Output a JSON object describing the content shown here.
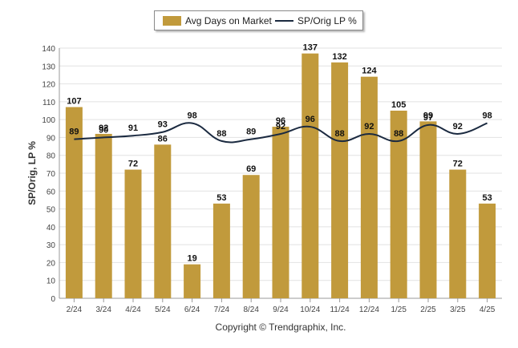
{
  "legend": {
    "bar_label": "Avg Days on Market",
    "line_label": "SP/Orig LP %"
  },
  "footer": {
    "copyright": "Copyright © Trendgraphix, Inc."
  },
  "chart_data": {
    "type": "bar",
    "categories": [
      "2/24",
      "3/24",
      "4/24",
      "5/24",
      "6/24",
      "7/24",
      "8/24",
      "9/24",
      "10/24",
      "11/24",
      "12/24",
      "1/25",
      "2/25",
      "3/25",
      "4/25"
    ],
    "series": [
      {
        "name": "Avg Days on Market",
        "type": "bar",
        "color": "#c19a3c",
        "values": [
          107,
          92,
          72,
          86,
          19,
          53,
          69,
          96,
          137,
          132,
          124,
          105,
          99,
          72,
          53
        ]
      },
      {
        "name": "SP/Orig LP %",
        "type": "line",
        "color": "#1b2a40",
        "values": [
          89,
          90,
          91,
          93,
          98,
          88,
          89,
          92,
          96,
          88,
          92,
          88,
          97,
          92,
          98
        ]
      }
    ],
    "ylabel": "SP/Orig, LP %",
    "ylim": [
      0,
      140
    ],
    "yticks": [
      0,
      10,
      20,
      30,
      40,
      50,
      60,
      70,
      80,
      90,
      100,
      110,
      120,
      130,
      140
    ],
    "grid": true,
    "legend_position": "top"
  }
}
